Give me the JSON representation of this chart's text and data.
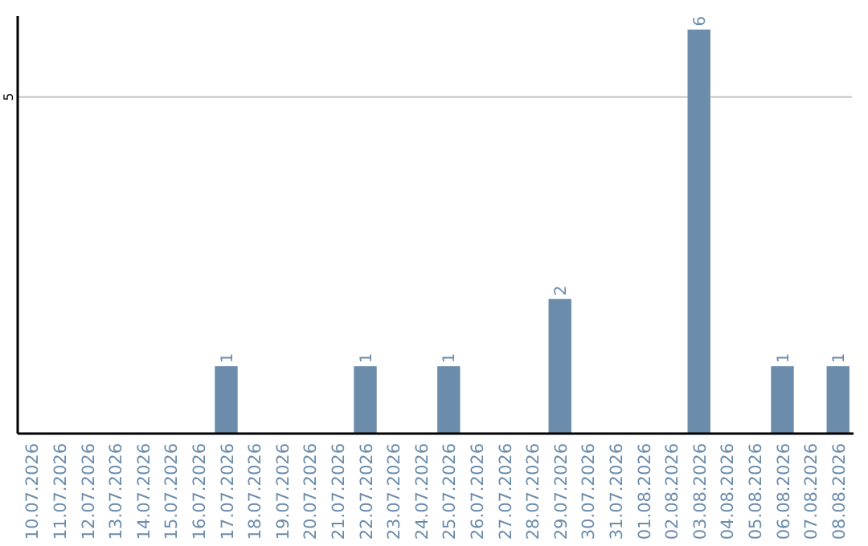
{
  "chart_data": {
    "type": "bar",
    "categories": [
      "10.07.2026",
      "11.07.2026",
      "12.07.2026",
      "13.07.2026",
      "14.07.2026",
      "15.07.2026",
      "16.07.2026",
      "17.07.2026",
      "18.07.2026",
      "19.07.2026",
      "20.07.2026",
      "21.07.2026",
      "22.07.2026",
      "23.07.2026",
      "24.07.2026",
      "25.07.2026",
      "26.07.2026",
      "27.07.2026",
      "28.07.2026",
      "29.07.2026",
      "30.07.2026",
      "31.07.2026",
      "01.08.2026",
      "02.08.2026",
      "03.08.2026",
      "04.08.2026",
      "05.08.2026",
      "06.08.2026",
      "07.08.2026",
      "08.08.2026"
    ],
    "values": [
      0,
      0,
      0,
      0,
      0,
      0,
      0,
      1,
      0,
      0,
      0,
      0,
      1,
      0,
      0,
      1,
      0,
      0,
      0,
      2,
      0,
      0,
      0,
      0,
      6,
      0,
      0,
      1,
      0,
      1
    ],
    "value_labels": [
      null,
      null,
      null,
      null,
      null,
      null,
      null,
      "1",
      null,
      null,
      null,
      null,
      "1",
      null,
      null,
      "1",
      null,
      null,
      null,
      "2",
      null,
      null,
      null,
      null,
      "6",
      null,
      null,
      "1",
      null,
      "1"
    ],
    "color": "#6b8cab",
    "ylim": [
      0,
      6.2
    ],
    "yticks": [
      5
    ],
    "grid": "y"
  }
}
